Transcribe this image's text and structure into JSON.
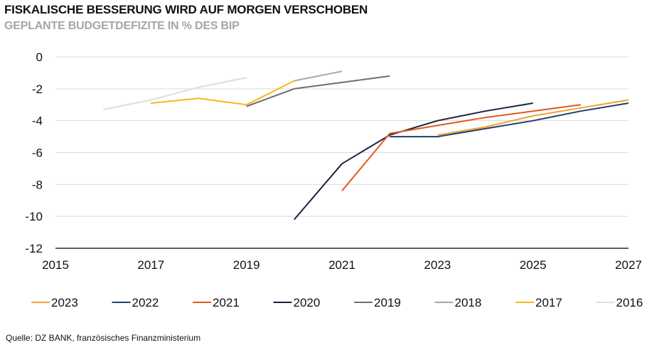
{
  "header": {
    "title": "FISKALISCHE BESSERUNG WIRD AUF MORGEN VERSCHOBEN",
    "subtitle": "GEPLANTE BUDGETDEFIZITE IN % DES BIP"
  },
  "footer": {
    "source": "Quelle: DZ BANK, französisches Finanzministerium"
  },
  "chart_data": {
    "type": "line",
    "title": "FISKALISCHE BESSERUNG WIRD AUF MORGEN VERSCHOBEN",
    "subtitle": "GEPLANTE BUDGETDEFIZITE IN % DES BIP",
    "xlabel": "",
    "ylabel": "",
    "xlim": [
      2015,
      2027
    ],
    "ylim": [
      -12,
      0
    ],
    "x_ticks": [
      2015,
      2017,
      2019,
      2021,
      2023,
      2025,
      2027
    ],
    "y_ticks": [
      0,
      -2,
      -4,
      -6,
      -8,
      -10,
      -12
    ],
    "grid": "horizontal",
    "legend": "bottom",
    "series": [
      {
        "name": "2023",
        "color": "#f0a030",
        "points": [
          [
            2023,
            -4.9
          ],
          [
            2024,
            -4.4
          ],
          [
            2025,
            -3.7
          ],
          [
            2026,
            -3.2
          ],
          [
            2027,
            -2.7
          ]
        ]
      },
      {
        "name": "2022",
        "color": "#1f3e6b",
        "points": [
          [
            2022,
            -5.0
          ],
          [
            2023,
            -5.0
          ],
          [
            2024,
            -4.5
          ],
          [
            2025,
            -4.0
          ],
          [
            2026,
            -3.4
          ],
          [
            2027,
            -2.9
          ]
        ]
      },
      {
        "name": "2021",
        "color": "#e05a23",
        "points": [
          [
            2021,
            -8.4
          ],
          [
            2022,
            -4.8
          ],
          [
            2023,
            -4.3
          ],
          [
            2024,
            -3.8
          ],
          [
            2025,
            -3.4
          ],
          [
            2026,
            -3.0
          ]
        ]
      },
      {
        "name": "2020",
        "color": "#16243d",
        "points": [
          [
            2020,
            -10.2
          ],
          [
            2021,
            -6.7
          ],
          [
            2022,
            -4.9
          ],
          [
            2023,
            -4.0
          ],
          [
            2024,
            -3.4
          ],
          [
            2025,
            -2.9
          ]
        ]
      },
      {
        "name": "2019",
        "color": "#6f6f6f",
        "points": [
          [
            2019,
            -3.1
          ],
          [
            2020,
            -2.0
          ],
          [
            2021,
            -1.6
          ],
          [
            2022,
            -1.2
          ]
        ]
      },
      {
        "name": "2018",
        "color": "#a8a8a8",
        "points": [
          [
            2020,
            -1.5
          ],
          [
            2021,
            -0.9
          ]
        ]
      },
      {
        "name": "2017",
        "color": "#f5b81c",
        "points": [
          [
            2017,
            -2.9
          ],
          [
            2018,
            -2.6
          ],
          [
            2019,
            -3.0
          ],
          [
            2020,
            -1.5
          ]
        ]
      },
      {
        "name": "2016",
        "color": "#dedede",
        "points": [
          [
            2016,
            -3.3
          ],
          [
            2017,
            -2.7
          ],
          [
            2018,
            -1.9
          ],
          [
            2019,
            -1.3
          ]
        ]
      }
    ]
  }
}
